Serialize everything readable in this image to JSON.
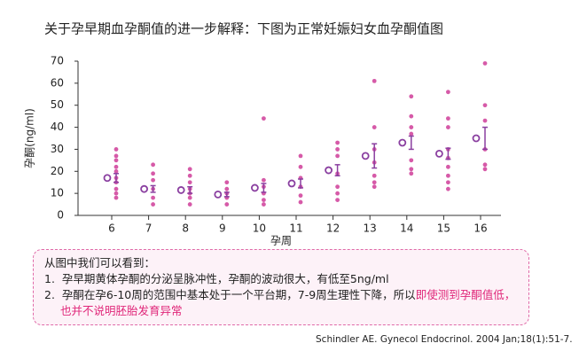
{
  "chart_data": {
    "type": "scatter",
    "title": "关于孕早期血孕酮值的进一步解释：下图为正常妊娠妇女血孕酮值图",
    "y_label": "孕酮(ng/ml)",
    "x_label": "孕周",
    "categories": [
      "6",
      "7",
      "8",
      "9",
      "10",
      "11",
      "12",
      "13",
      "14",
      "15",
      "16"
    ],
    "points": [
      [
        30,
        27,
        25,
        22,
        20,
        17,
        15,
        12,
        10,
        8
      ],
      [
        23,
        19,
        16,
        12,
        8,
        5
      ],
      [
        21,
        18,
        15,
        12,
        10,
        8,
        5
      ],
      [
        15,
        12,
        10,
        8,
        5
      ],
      [
        44,
        16,
        13,
        10,
        7,
        5
      ],
      [
        27,
        22,
        17,
        13,
        9,
        6
      ],
      [
        33,
        30,
        27,
        19,
        13,
        10,
        7
      ],
      [
        61,
        40,
        30,
        24,
        18,
        15,
        13
      ],
      [
        54,
        45,
        40,
        37,
        25,
        21,
        19
      ],
      [
        56,
        44,
        40,
        30,
        26,
        22,
        18,
        15,
        12
      ],
      [
        69,
        50,
        43,
        30,
        23,
        21
      ]
    ],
    "means": [
      17,
      12,
      11.5,
      9.5,
      12.5,
      14.5,
      20.5,
      27,
      33,
      28,
      35
    ],
    "errors": [
      2,
      1.5,
      1.5,
      1,
      2,
      2,
      2.5,
      5.5,
      3,
      2.5,
      5
    ],
    "point_color": "#d65aa8",
    "mean_color": "#8a3fa0",
    "ylim": [
      0,
      70
    ],
    "yticks": [
      0,
      10,
      20,
      30,
      40,
      50,
      60,
      70
    ]
  },
  "note": {
    "heading": "从图中我们可以看到：",
    "items": [
      {
        "number": "1.",
        "text": "孕早期黄体孕酮的分泌呈脉冲性，孕酮的波动很大，有低至5ng/ml"
      },
      {
        "number": "2.",
        "text": "孕酮在孕6-10周的范围中基本处于一个平台期，7-9周生理性下降，所以",
        "highlight": "即使测到孕酮值低，也并不说明胚胎发育异常"
      }
    ]
  },
  "citation": "Schindler AE. Gynecol Endocrinol. 2004 Jan;18(1):51-7."
}
